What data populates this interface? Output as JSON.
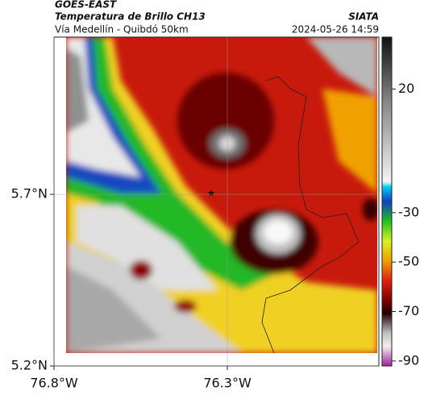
{
  "header": {
    "title": "GOES-EAST",
    "subtitle": "Temperatura de Brillo CH13",
    "route": "Vía Medellín - Quibdó 50km",
    "source": "SIATA",
    "timestamp": "2024-05-26 14:59"
  },
  "map": {
    "lon_range": [
      -76.8,
      -75.863
    ],
    "lat_range": [
      5.2,
      6.158
    ],
    "lat_ticks": [
      {
        "value": 5.7,
        "label": "5.7°N"
      },
      {
        "value": 5.2,
        "label": "5.2°N"
      }
    ],
    "lon_ticks": [
      {
        "value": -76.8,
        "label": "76.8°W"
      },
      {
        "value": -76.3,
        "label": "76.3°W"
      }
    ]
  },
  "colorbar": {
    "range": [
      -92,
      41
    ],
    "ticks": [
      20,
      -30,
      -50,
      -70,
      -90
    ]
  }
}
